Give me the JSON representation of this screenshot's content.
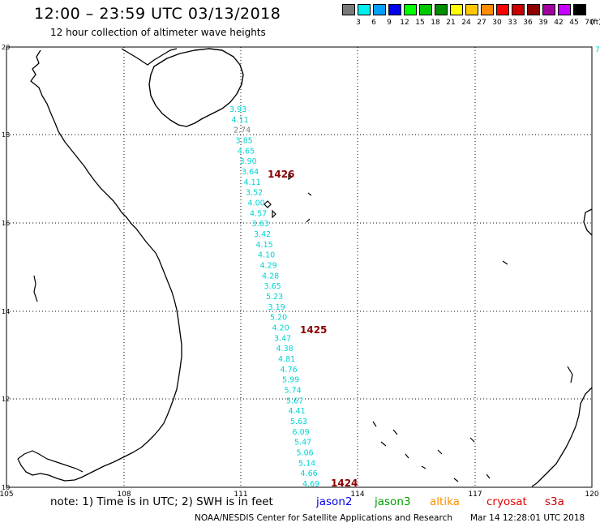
{
  "header": {
    "title": "12:00 – 23:59 UTC 03/13/2018",
    "subtitle": "12 hour collection of altimeter wave heights"
  },
  "legend": {
    "unit": "(ft)",
    "items": [
      {
        "label": "3",
        "color": "#7a7a7a"
      },
      {
        "label": "6",
        "color": "#00f0f0"
      },
      {
        "label": "9",
        "color": "#00a0ff"
      },
      {
        "label": "12",
        "color": "#0000f0"
      },
      {
        "label": "15",
        "color": "#00ff00"
      },
      {
        "label": "18",
        "color": "#00c800"
      },
      {
        "label": "21",
        "color": "#008c00"
      },
      {
        "label": "24",
        "color": "#ffff00"
      },
      {
        "label": "27",
        "color": "#ffc800"
      },
      {
        "label": "30",
        "color": "#ff8c00"
      },
      {
        "label": "33",
        "color": "#ff0000"
      },
      {
        "label": "36",
        "color": "#c80000"
      },
      {
        "label": "39",
        "color": "#8c0000"
      },
      {
        "label": "42",
        "color": "#a000a0"
      },
      {
        "label": "45",
        "color": "#c800ff"
      },
      {
        "label": "70",
        "color": "#000000"
      }
    ]
  },
  "axes": {
    "lon_ticks": [
      "105",
      "108",
      "111",
      "114",
      "117",
      "120"
    ],
    "lat_ticks": [
      "20",
      "18",
      "16",
      "14",
      "12",
      "10"
    ],
    "edge_label": "7"
  },
  "track_values": [
    "3.93",
    "4.11",
    "2.74",
    "3.85",
    "4.65",
    "3.90",
    "3.64",
    "4.11",
    "3.52",
    "4.00",
    "4.57",
    "3.63",
    "3.42",
    "4.15",
    "4.10",
    "4.29",
    "4.28",
    "3.65",
    "5.23",
    "3.19",
    "5.20",
    "4.20",
    "3.47",
    "4.38",
    "4.81",
    "4.76",
    "5.99",
    "5.74",
    "5.67",
    "4.41",
    "5.63",
    "6.09",
    "5.47",
    "5.06",
    "5.14",
    "4.66",
    "4.69"
  ],
  "track_colors": {
    "normal": "#00d2d2",
    "low": "#7a7a7a"
  },
  "time_labels": [
    "1426",
    "1425",
    "1424"
  ],
  "time_color": "#8c0000",
  "notes": {
    "text": "note: 1) Time is in UTC; 2) SWH is in feet",
    "satellites": [
      {
        "name": "jason2",
        "color": "#0000e6"
      },
      {
        "name": "jason3",
        "color": "#00a000"
      },
      {
        "name": "altika",
        "color": "#ff9000"
      },
      {
        "name": "cryosat",
        "color": "#e60000"
      },
      {
        "name": "s3a",
        "color": "#c80000"
      }
    ]
  },
  "footer": {
    "agency": "NOAA/NESDIS Center for Satellite Applications and Research",
    "timestamp": "Mar 14 12:28:01 UTC 2018"
  }
}
